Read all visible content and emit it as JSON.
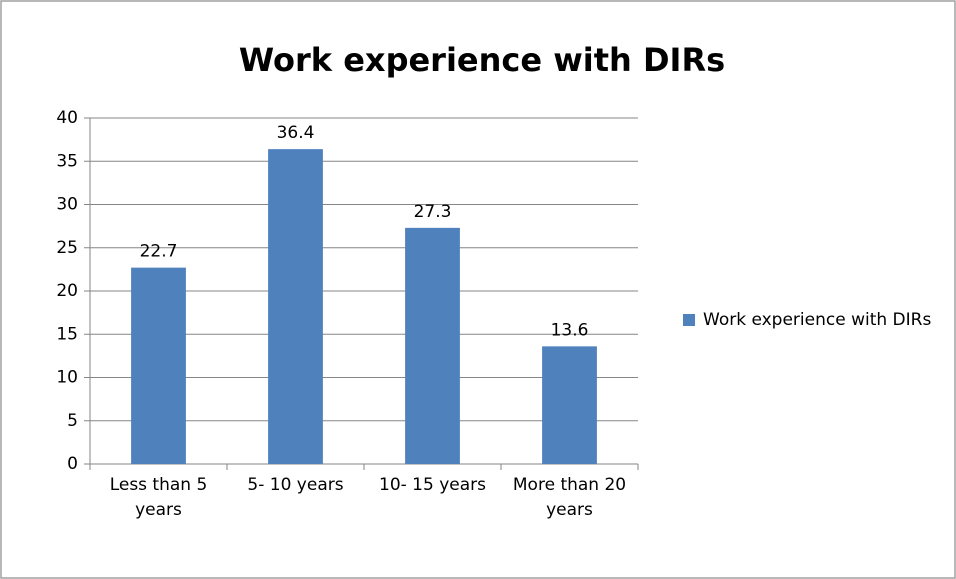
{
  "chart_data": {
    "type": "bar",
    "title": "Work experience with DIRs",
    "categories": [
      "Less than 5 years",
      "5- 10 years",
      "10- 15 years",
      "More than 20 years"
    ],
    "series": [
      {
        "name": "Work experience with DIRs",
        "color": "#4f81bd",
        "values": [
          22.7,
          36.4,
          27.3,
          13.6
        ]
      }
    ],
    "ylim": [
      0,
      40
    ],
    "yticks": [
      0,
      5,
      10,
      15,
      20,
      25,
      30,
      35,
      40
    ],
    "grid": true,
    "legend": "right"
  }
}
